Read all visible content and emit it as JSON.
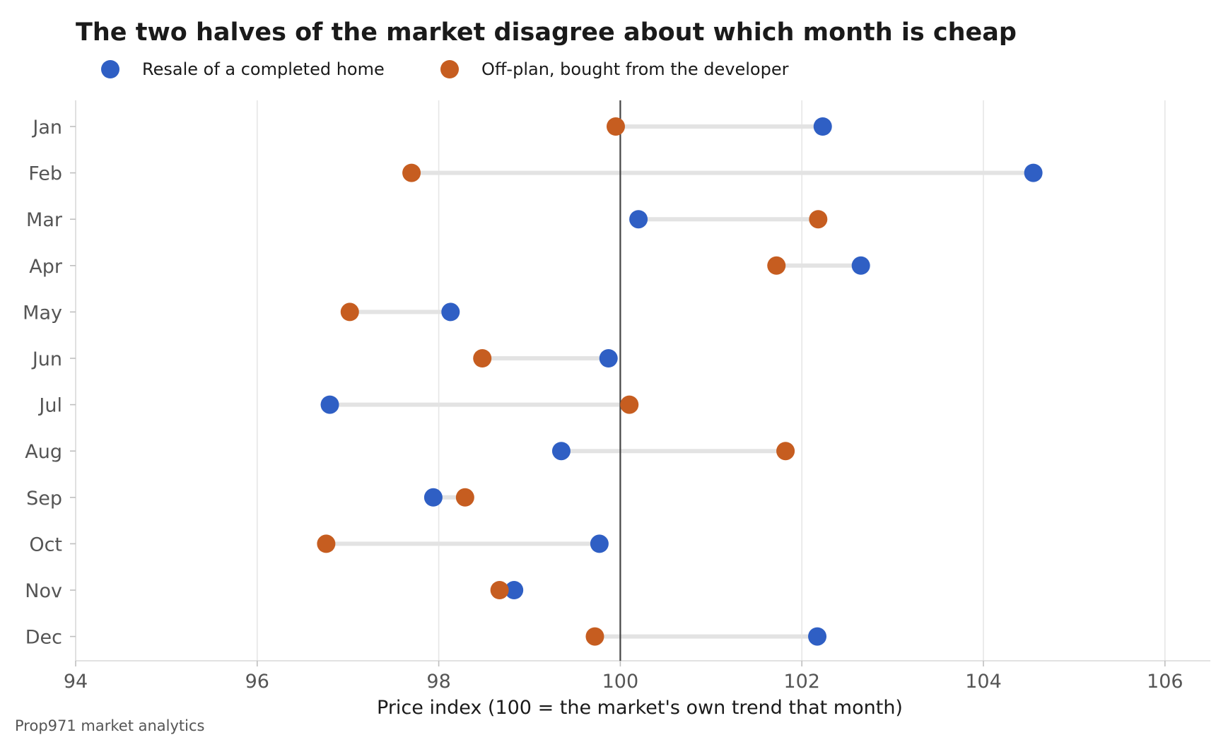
{
  "chart_data": {
    "type": "dumbbell",
    "title": "The two halves of the market disagree about which month is cheap",
    "xlabel": "Price index (100 = the market's own trend that month)",
    "ylabel": "",
    "xlim": [
      94,
      106.5
    ],
    "xticks": [
      94,
      96,
      98,
      100,
      102,
      104,
      106
    ],
    "reference_line": 100,
    "grid": "vertical",
    "legend_position": "top-left",
    "categories": [
      "Jan",
      "Feb",
      "Mar",
      "Apr",
      "May",
      "Jun",
      "Jul",
      "Aug",
      "Sep",
      "Oct",
      "Nov",
      "Dec"
    ],
    "series": [
      {
        "name": "Resale of a completed home",
        "color": "#2f5fc4",
        "values": [
          102.23,
          104.55,
          100.2,
          102.65,
          98.13,
          99.87,
          96.8,
          99.35,
          97.94,
          99.77,
          98.83,
          102.17
        ]
      },
      {
        "name": "Off-plan, bought from the developer",
        "color": "#c65d20",
        "values": [
          99.95,
          97.7,
          102.18,
          101.72,
          97.02,
          98.48,
          100.1,
          101.82,
          98.29,
          96.76,
          98.67,
          99.72
        ]
      }
    ],
    "connector_color": "#e3e3e3",
    "source": "Prop971 market analytics"
  }
}
